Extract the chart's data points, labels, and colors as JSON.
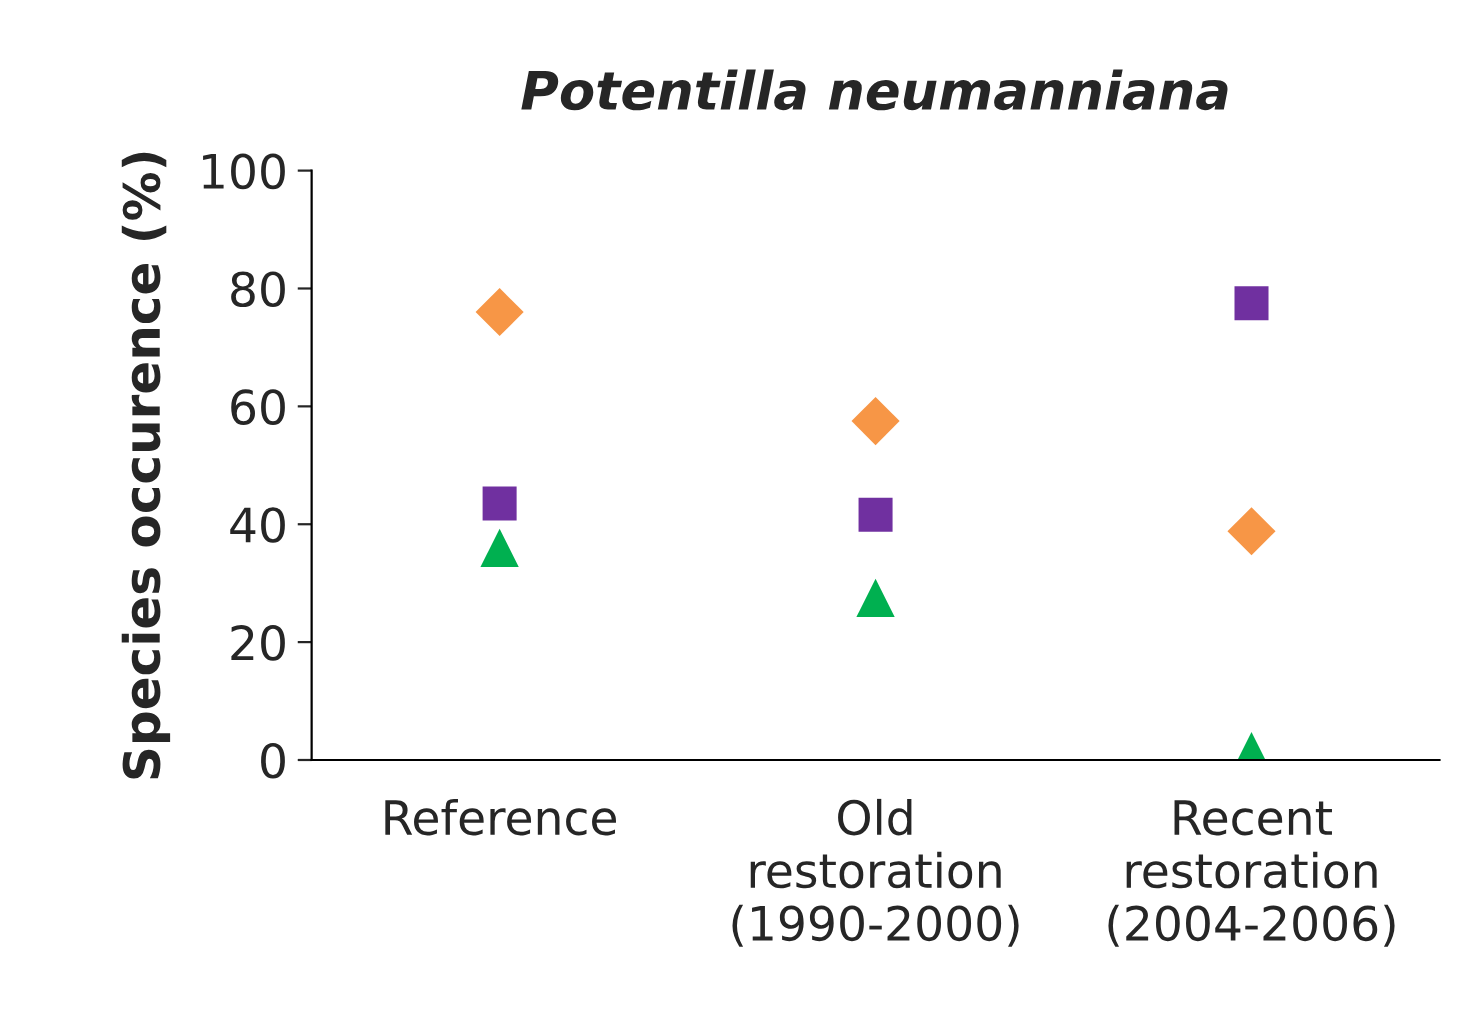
{
  "chart_data": {
    "type": "scatter",
    "title": "Potentilla neumanniana",
    "ylabel": "Species occurence (%)",
    "categories": [
      "Reference",
      "Old\nrestoration\n(1990-2000)",
      "Recent\nrestoration\n(2004-2006)"
    ],
    "series": [
      {
        "color": "#f79646",
        "marker": "diamond",
        "values": [
          76,
          57.5,
          38.8
        ]
      },
      {
        "color": "#7030a0",
        "marker": "square",
        "values": [
          43.5,
          41.6,
          77.5
        ]
      },
      {
        "color": "#00b050",
        "marker": "triangle",
        "values": [
          36,
          27.5,
          1.5
        ]
      }
    ],
    "ylim": [
      0,
      100
    ],
    "yticks": [
      0,
      20,
      40,
      60,
      80,
      100
    ],
    "grid": false,
    "legend": false
  }
}
